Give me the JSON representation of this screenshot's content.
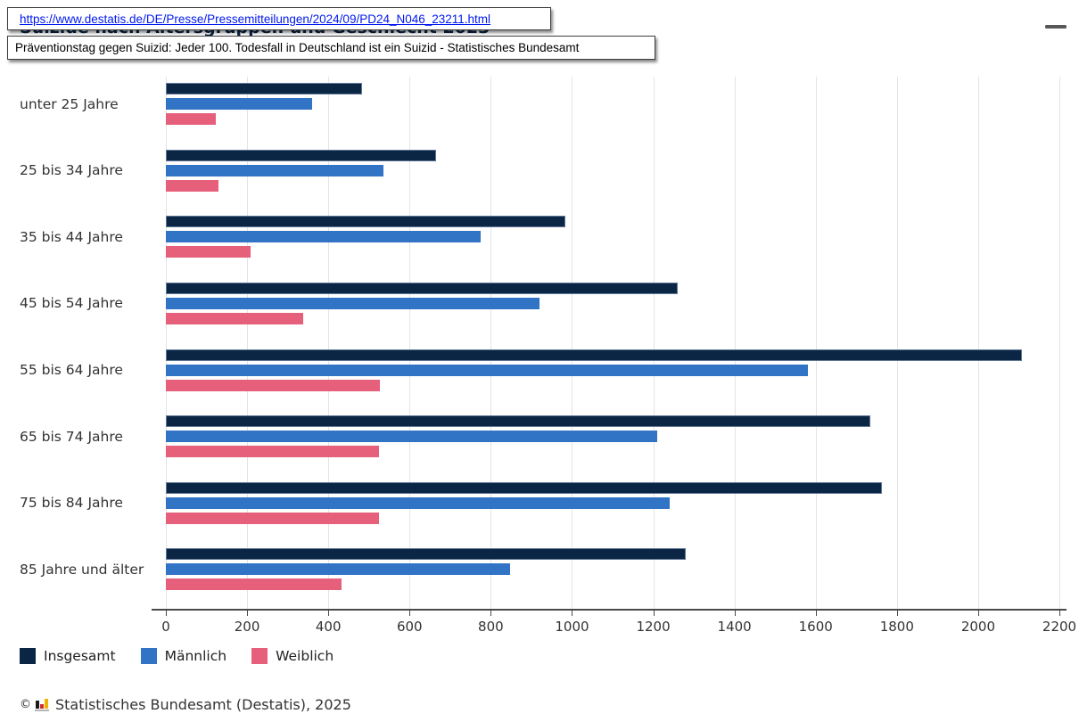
{
  "overlay": {
    "url_tooltip": "https://www.destatis.de/DE/Presse/Pressemitteilungen/2024/09/PD24_N046_23211.html",
    "status_tooltip": "Präventionstag gegen Suizid: Jeder 100. Todesfall in Deutschland ist ein Suizid - Statistisches Bundesamt"
  },
  "menu": {
    "icon": "hamburger-menu"
  },
  "chart_data": {
    "type": "bar",
    "orientation": "horizontal",
    "title": "Suizide nach Altersgruppen und Geschlecht 2023",
    "categories": [
      "unter 25 Jahre",
      "25 bis 34 Jahre",
      "35 bis 44 Jahre",
      "45 bis 54 Jahre",
      "55 bis 64 Jahre",
      "65 bis 74 Jahre",
      "75 bis 84 Jahre",
      "85 Jahre und älter"
    ],
    "series": [
      {
        "name": "Insgesamt",
        "color": "#0b2545",
        "values": [
          483,
          665,
          983,
          1260,
          2107,
          1735,
          1764,
          1281
        ]
      },
      {
        "name": "Männlich",
        "color": "#3173c4",
        "values": [
          361,
          536,
          774,
          921,
          1580,
          1210,
          1240,
          848
        ]
      },
      {
        "name": "Weiblich",
        "color": "#e65f7b",
        "values": [
          122,
          129,
          209,
          339,
          527,
          525,
          524,
          433
        ]
      }
    ],
    "xlim": [
      0,
      2200
    ],
    "x_ticks": [
      0,
      200,
      400,
      600,
      800,
      1000,
      1200,
      1400,
      1600,
      1800,
      2000,
      2200
    ],
    "grid": true,
    "legend_position": "bottom"
  },
  "footer": {
    "copyright_sign": "©",
    "source": "Statistisches Bundesamt (Destatis), 2025"
  }
}
